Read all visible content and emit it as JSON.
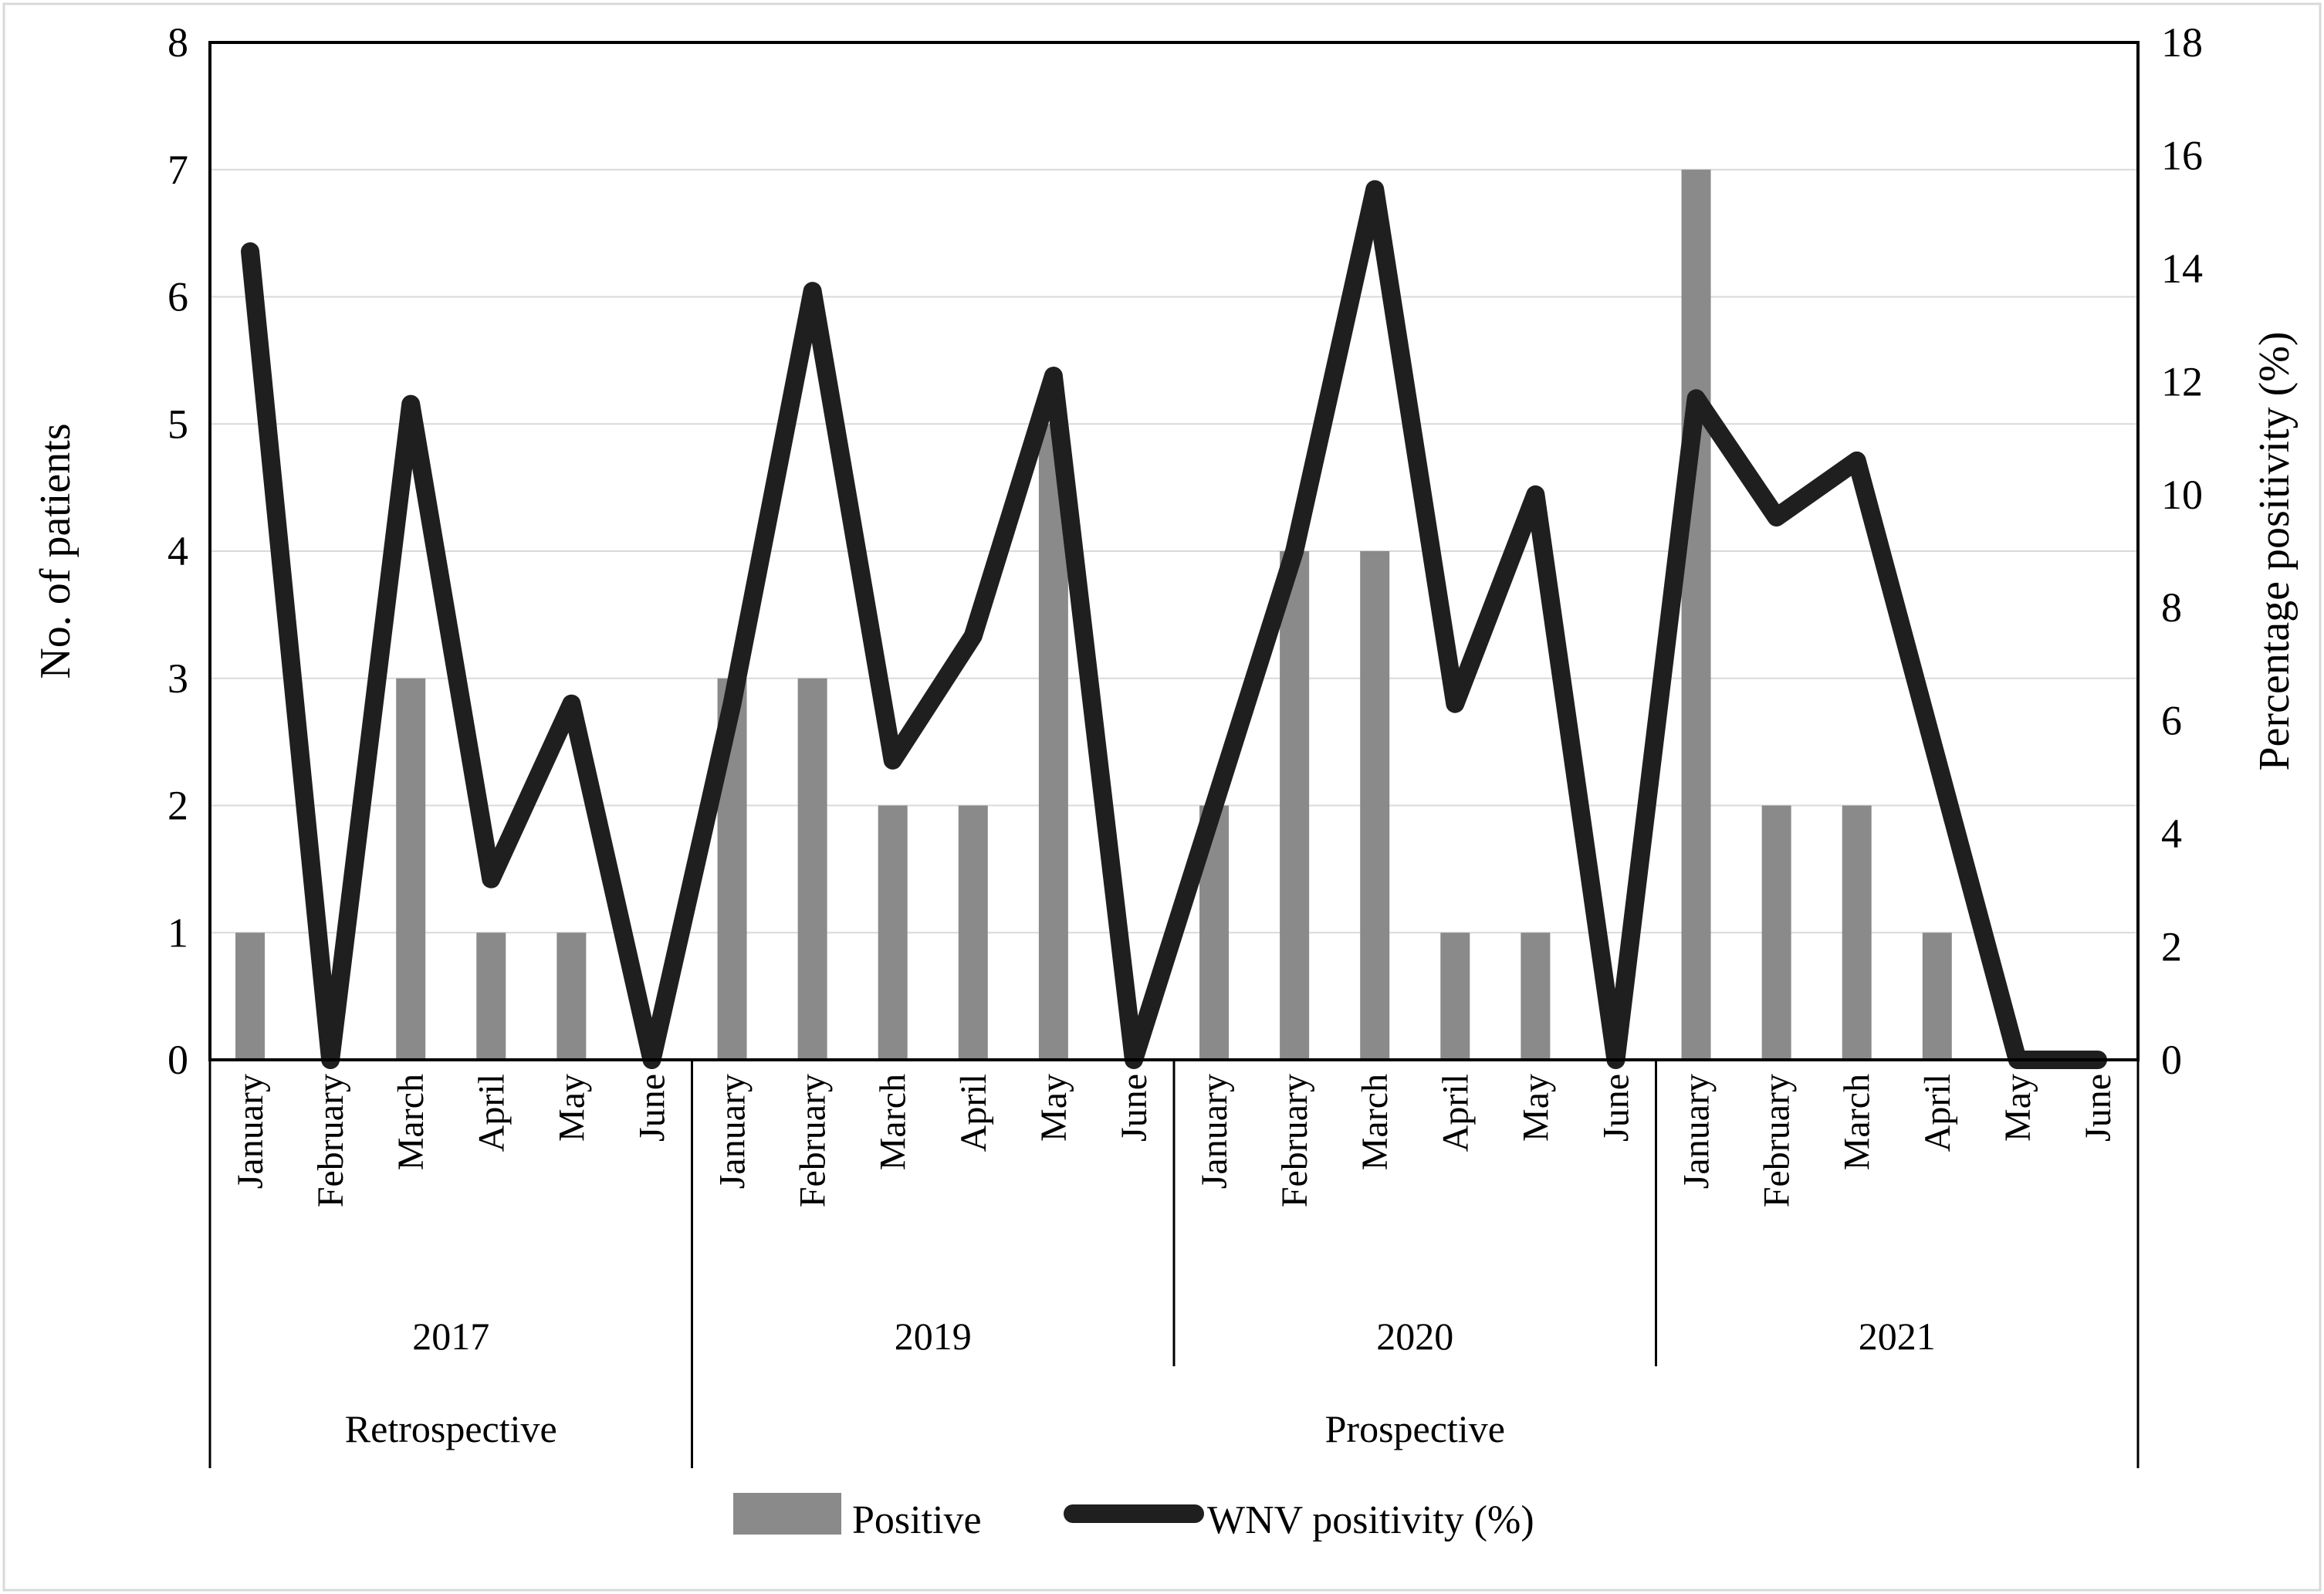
{
  "figure": {
    "legend": {
      "positive_label": "Positive",
      "line_label": "WNV positivity (%)"
    },
    "axes": {
      "left_title": "No. of patients",
      "right_title": "Percentage positivity (%)"
    },
    "colors": {
      "bar": "#8a8a8a",
      "line": "#1f1f1f",
      "gridline": "#d9d9d9",
      "axis": "#000000",
      "frame": "#d8d8d8"
    }
  },
  "chart_data": {
    "type": [
      "bar",
      "line"
    ],
    "title": "",
    "xlabel": "",
    "left_axis": {
      "label": "No. of patients",
      "min": 0,
      "max": 8,
      "step": 1,
      "ticks": [
        8,
        7,
        6,
        5,
        4,
        3,
        2,
        1,
        0
      ]
    },
    "right_axis": {
      "label": "Percentage positivity (%)",
      "min": 0,
      "max": 18,
      "step": 2,
      "ticks": [
        18,
        16,
        14,
        12,
        10,
        8,
        6,
        4,
        2,
        0
      ]
    },
    "grid": "horizontal-on",
    "legend_position": "bottom",
    "year_groups": [
      {
        "year": "2017",
        "months": [
          "January",
          "February",
          "March",
          "April",
          "May",
          "June"
        ],
        "positive": [
          1,
          0,
          3,
          1,
          1,
          0
        ],
        "wnv_positivity_pct": [
          14.3,
          0,
          11.6,
          3.2,
          6.3,
          0
        ]
      },
      {
        "year": "2019",
        "months": [
          "January",
          "February",
          "March",
          "April",
          "May",
          "June"
        ],
        "positive": [
          3,
          3,
          2,
          2,
          5,
          0
        ],
        "wnv_positivity_pct": [
          6.3,
          13.6,
          5.3,
          7.5,
          12.1,
          0
        ]
      },
      {
        "year": "2020",
        "months": [
          "January",
          "February",
          "March",
          "April",
          "May",
          "June"
        ],
        "positive": [
          2,
          4,
          4,
          1,
          1,
          0
        ],
        "wnv_positivity_pct": [
          4.5,
          9.0,
          15.4,
          6.3,
          10.0,
          0
        ]
      },
      {
        "year": "2021",
        "months": [
          "January",
          "February",
          "March",
          "April",
          "May",
          "June"
        ],
        "positive": [
          7,
          2,
          2,
          1,
          0,
          0
        ],
        "wnv_positivity_pct": [
          11.7,
          9.6,
          10.6,
          5.3,
          0,
          0
        ]
      }
    ],
    "phase_groups": [
      {
        "label": "Retrospective",
        "year_span": [
          "2017"
        ]
      },
      {
        "label": "Prospective",
        "year_span": [
          "2019",
          "2020",
          "2021"
        ]
      }
    ],
    "series": [
      {
        "name": "Positive",
        "type": "bar",
        "axis": "left"
      },
      {
        "name": "WNV positivity (%)",
        "type": "line",
        "axis": "right"
      }
    ]
  }
}
